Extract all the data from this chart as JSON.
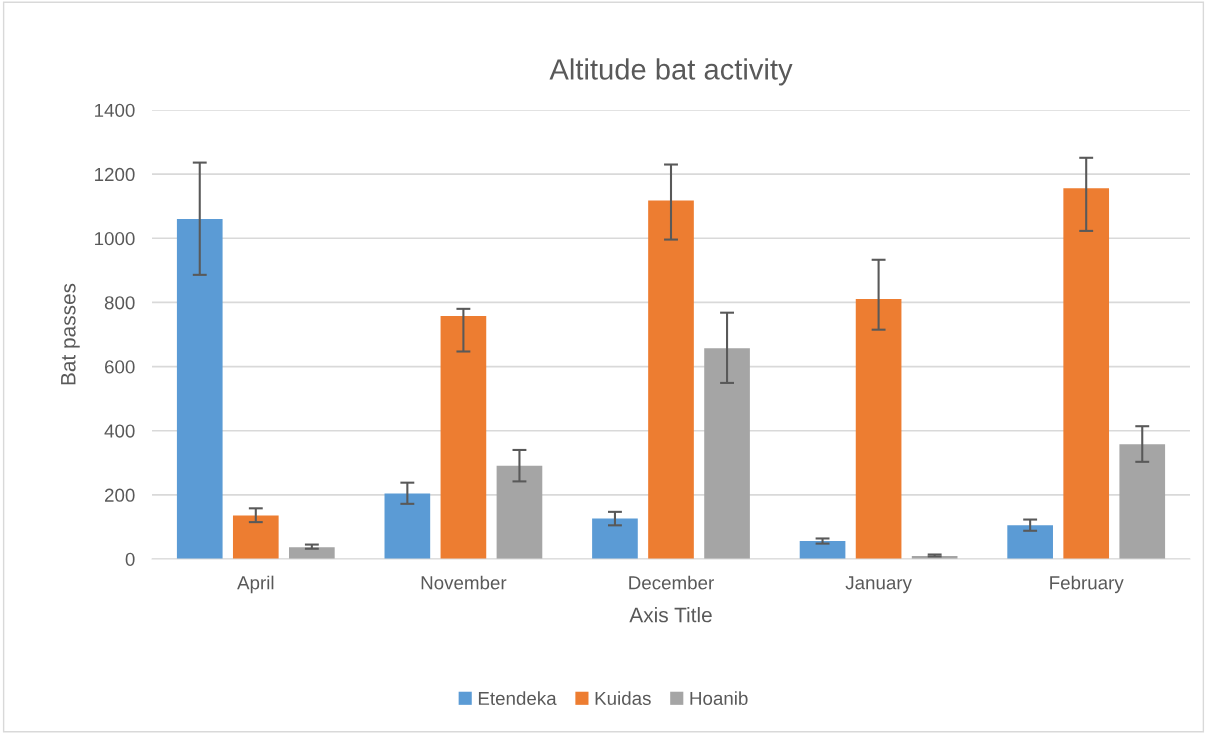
{
  "chart_data": {
    "type": "bar",
    "title": "Altitude bat activity",
    "xlabel": "Axis Title",
    "ylabel": "Bat passes",
    "categories": [
      "April",
      "November",
      "December",
      "January",
      "February"
    ],
    "series": [
      {
        "name": "Etendeka",
        "color": "#5b9bd5",
        "values": [
          1060,
          204,
          126,
          56,
          105
        ],
        "errors": [
          [
            886,
            1236
          ],
          [
            172,
            238
          ],
          [
            105,
            147
          ],
          [
            48,
            64
          ],
          [
            88,
            123
          ]
        ]
      },
      {
        "name": "Kuidas",
        "color": "#ed7d31",
        "values": [
          136,
          758,
          1118,
          811,
          1156
        ],
        "errors": [
          [
            115,
            158
          ],
          [
            647,
            780
          ],
          [
            996,
            1230
          ],
          [
            715,
            933
          ],
          [
            1023,
            1251
          ]
        ]
      },
      {
        "name": "Hoanib",
        "color": "#a5a5a5",
        "values": [
          37,
          291,
          657,
          9,
          358
        ],
        "errors": [
          [
            32,
            45
          ],
          [
            242,
            340
          ],
          [
            549,
            768
          ],
          [
            8,
            14
          ],
          [
            303,
            414
          ]
        ]
      }
    ],
    "ylim": [
      0,
      1400
    ],
    "yticks": [
      0,
      200,
      400,
      600,
      800,
      1000,
      1200,
      1400
    ],
    "grid": "y",
    "legend": "bottom"
  }
}
